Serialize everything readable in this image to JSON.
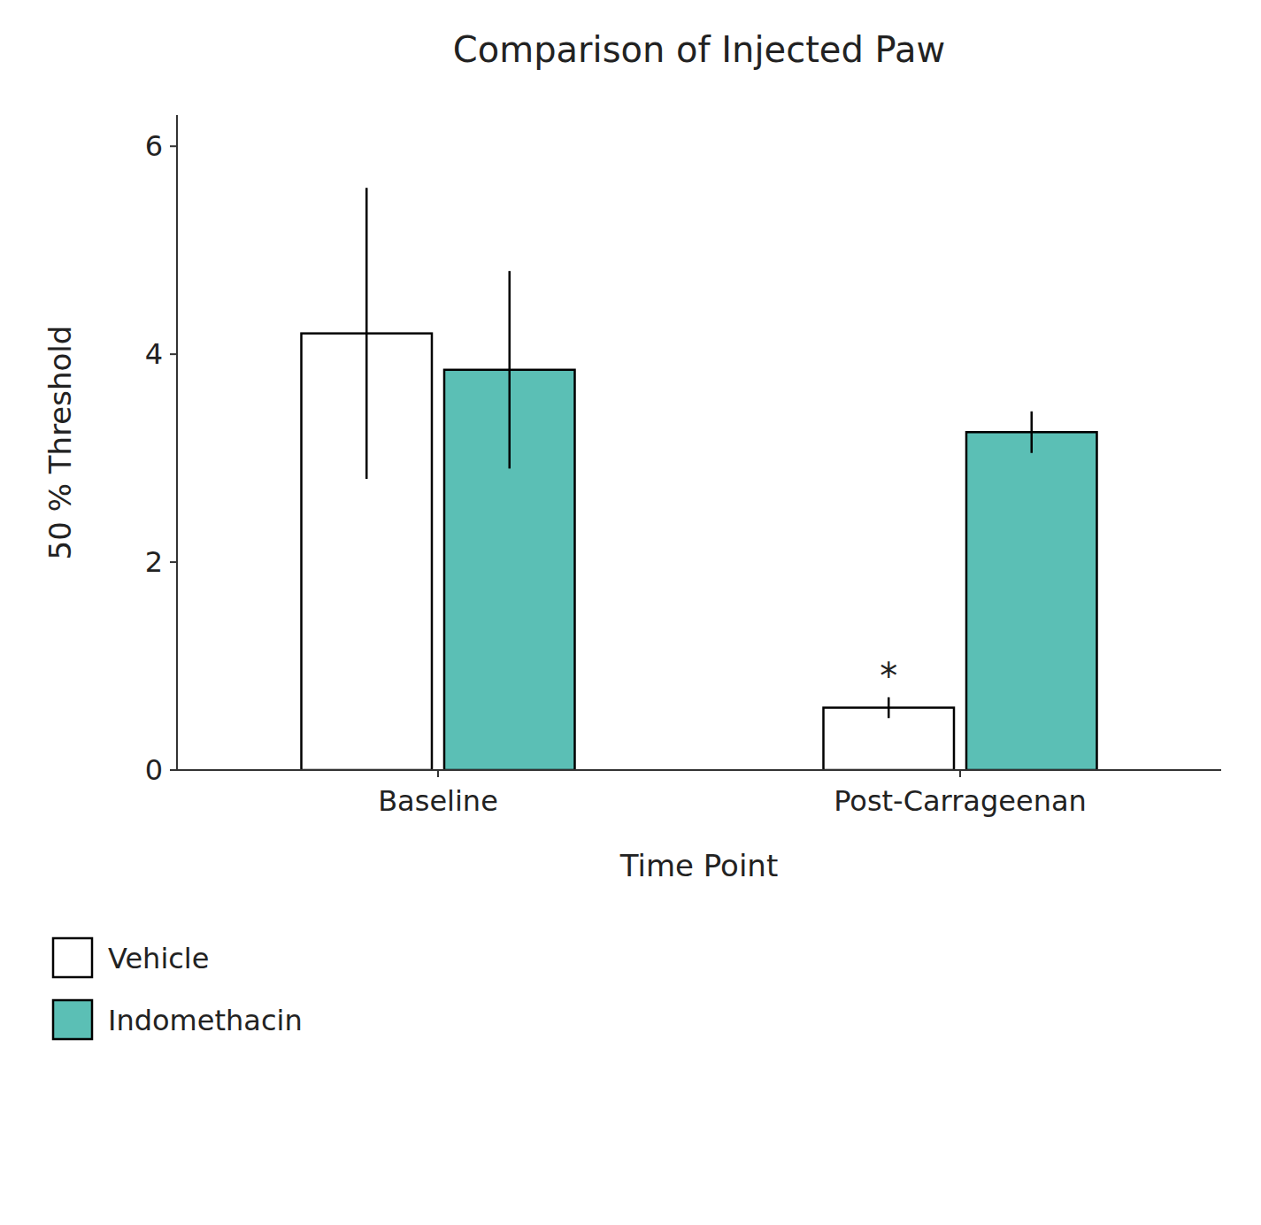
{
  "chart_data": {
    "type": "bar",
    "title": "Comparison of Injected Paw",
    "ylabel": "50 % Threshold",
    "xlabel": "Time Point",
    "categories": [
      "Baseline",
      "Post-Carrageenan"
    ],
    "series": [
      {
        "name": "Vehicle",
        "color": "#ffffff",
        "values": [
          4.2,
          0.6
        ],
        "errors": [
          1.4,
          0.1
        ]
      },
      {
        "name": "Indomethacin",
        "color": "#5bbfb5",
        "values": [
          3.85,
          3.25
        ],
        "errors": [
          0.95,
          0.2
        ]
      }
    ],
    "annotations": [
      {
        "text": "*",
        "category": "Post-Carrageenan",
        "series": "Vehicle"
      }
    ],
    "ylim": [
      0,
      6.3
    ],
    "yticks": [
      0,
      2,
      4,
      6
    ],
    "grid": false,
    "legend": "lower left"
  }
}
